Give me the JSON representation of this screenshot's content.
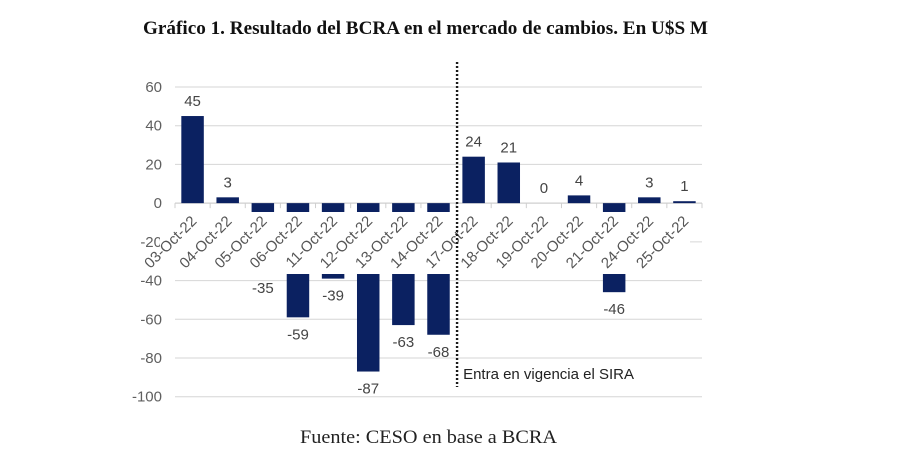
{
  "chart_data": {
    "type": "bar",
    "title": "Gráfico 1. Resultado del BCRA en el mercado de cambios. En U$S M",
    "xlabel": "",
    "ylabel": "",
    "categories": [
      "03-Oct-22",
      "04-Oct-22",
      "05-Oct-22",
      "06-Oct-22",
      "11-Oct-22",
      "12-Oct-22",
      "13-Oct-22",
      "14-Oct-22",
      "17-Oct-22",
      "18-Oct-22",
      "19-Oct-22",
      "20-Oct-22",
      "21-Oct-22",
      "24-Oct-22",
      "25-Oct-22"
    ],
    "values": [
      45,
      3,
      -35,
      -59,
      -39,
      -87,
      -63,
      -68,
      24,
      21,
      0,
      4,
      -46,
      3,
      1
    ],
    "ylim": [
      -100,
      60
    ],
    "yticks": [
      60,
      40,
      20,
      0,
      -20,
      -40,
      -60,
      -80,
      -100
    ],
    "grid": true,
    "legend": null,
    "series_color": "#0b2161",
    "annotation": {
      "type": "vertical-dotted-line",
      "between": [
        "14-Oct-22",
        "17-Oct-22"
      ],
      "label": "Entra en vigencia el SIRA"
    },
    "source": "Fuente: CESO en base a BCRA"
  }
}
